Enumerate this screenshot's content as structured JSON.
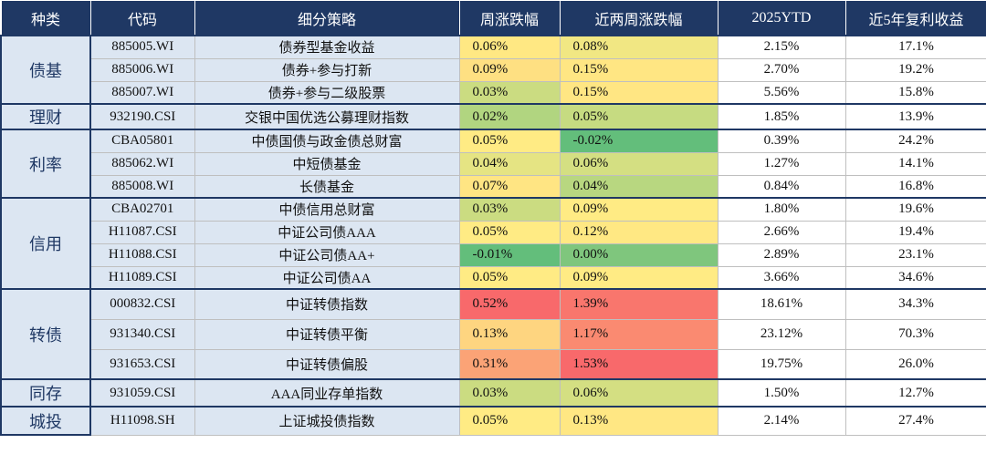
{
  "table": {
    "header": [
      "种类",
      "代码",
      "细分策略",
      "周涨跌幅",
      "近两周涨跌幅",
      "2025YTD",
      "近5年复利收益"
    ],
    "groups": [
      {
        "category": "债基",
        "rows": [
          [
            "885005.WI",
            "债券型基金收益",
            "0.06%",
            "0.08%",
            "2.15%",
            "17.1%"
          ],
          [
            "885006.WI",
            "债券+参与打新",
            "0.09%",
            "0.15%",
            "2.70%",
            "19.2%"
          ],
          [
            "885007.WI",
            "债券+参与二级股票",
            "0.03%",
            "0.15%",
            "5.56%",
            "15.8%"
          ]
        ]
      },
      {
        "category": "理财",
        "rows": [
          [
            "932190.CSI",
            "交银中国优选公募理财指数",
            "0.02%",
            "0.05%",
            "1.85%",
            "13.9%"
          ]
        ]
      },
      {
        "category": "利率",
        "rows": [
          [
            "CBA05801",
            "中债国债与政金债总财富",
            "0.05%",
            "-0.02%",
            "0.39%",
            "24.2%"
          ],
          [
            "885062.WI",
            "中短债基金",
            "0.04%",
            "0.06%",
            "1.27%",
            "14.1%"
          ],
          [
            "885008.WI",
            "长债基金",
            "0.07%",
            "0.04%",
            "0.84%",
            "16.8%"
          ]
        ]
      },
      {
        "category": "信用",
        "rows": [
          [
            "CBA02701",
            "中债信用总财富",
            "0.03%",
            "0.09%",
            "1.80%",
            "19.6%"
          ],
          [
            "H11087.CSI",
            "中证公司债AAA",
            "0.05%",
            "0.12%",
            "2.66%",
            "19.4%"
          ],
          [
            "H11088.CSI",
            "中证公司债AA+",
            "-0.01%",
            "0.00%",
            "2.89%",
            "23.1%"
          ],
          [
            "H11089.CSI",
            "中证公司债AA",
            "0.05%",
            "0.09%",
            "3.66%",
            "34.6%"
          ]
        ]
      },
      {
        "category": "转债",
        "rows": [
          [
            "000832.CSI",
            "中证转债指数",
            "0.52%",
            "1.39%",
            "18.61%",
            "34.3%"
          ],
          [
            "931340.CSI",
            "中证转债平衡",
            "0.13%",
            "1.17%",
            "23.12%",
            "70.3%"
          ],
          [
            "931653.CSI",
            "中证转债偏股",
            "0.31%",
            "1.53%",
            "19.75%",
            "26.0%"
          ]
        ]
      },
      {
        "category": "同存",
        "rows": [
          [
            "931059.CSI",
            "AAA同业存单指数",
            "0.03%",
            "0.06%",
            "1.50%",
            "12.7%"
          ]
        ]
      },
      {
        "category": "城投",
        "rows": [
          [
            "H11098.SH",
            "上证城投债指数",
            "0.05%",
            "0.13%",
            "2.14%",
            "27.4%"
          ]
        ]
      }
    ]
  },
  "color_scale": {
    "low": "#63be7b",
    "mid": "#ffeb84",
    "high": "#f8696b"
  }
}
